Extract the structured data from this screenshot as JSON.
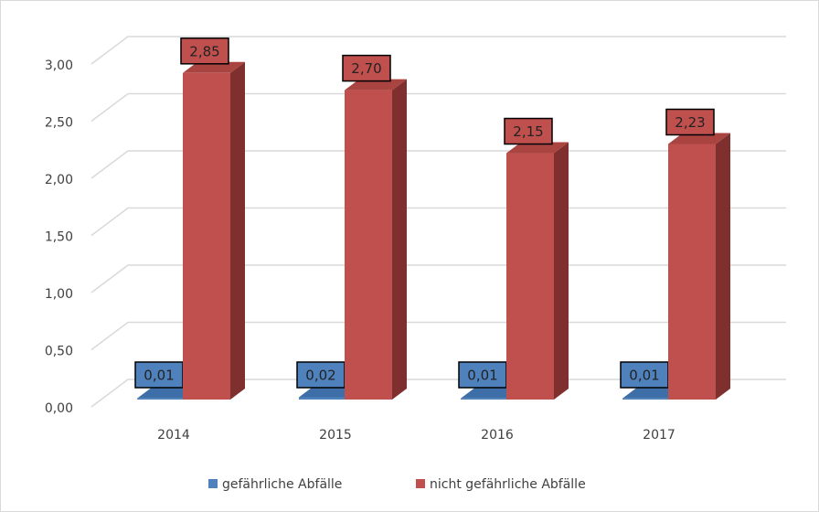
{
  "chart_data": {
    "type": "bar3d",
    "categories": [
      "2014",
      "2015",
      "2016",
      "2017"
    ],
    "series": [
      {
        "name": "gefährliche Abfälle",
        "color": "#4f81bd",
        "values": [
          0.01,
          0.02,
          0.01,
          0.01
        ],
        "value_labels": [
          "0,01",
          "0,02",
          "0,01",
          "0,01"
        ]
      },
      {
        "name": "nicht gefährliche Abfälle",
        "color": "#c0504d",
        "values": [
          2.85,
          2.7,
          2.15,
          2.23
        ],
        "value_labels": [
          "2,85",
          "2,70",
          "2,15",
          "2,23"
        ]
      }
    ],
    "ylim": [
      0,
      3
    ],
    "yticks": [
      {
        "value": 0,
        "label": "0,00"
      },
      {
        "value": 0.5,
        "label": "0,50"
      },
      {
        "value": 1,
        "label": "1,00"
      },
      {
        "value": 1.5,
        "label": "1,50"
      },
      {
        "value": 2,
        "label": "2,00"
      },
      {
        "value": 2.5,
        "label": "2,50"
      },
      {
        "value": 3,
        "label": "3,00"
      }
    ],
    "grid": true,
    "legend": "bottom"
  }
}
